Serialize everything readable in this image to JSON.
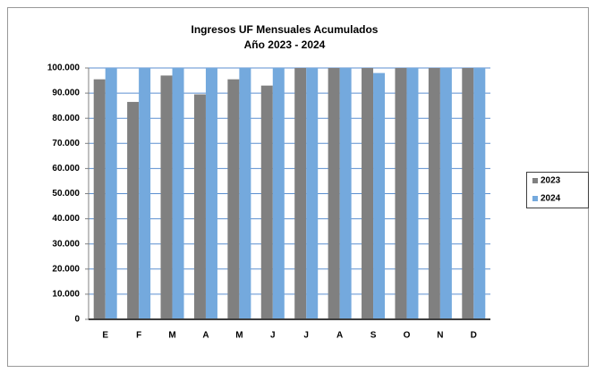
{
  "chart_data": {
    "type": "bar",
    "title": "Ingresos UF Mensuales Acumulados",
    "subtitle": "Año 2023 - 2024",
    "categories": [
      "E",
      "F",
      "M",
      "A",
      "M",
      "J",
      "J",
      "A",
      "S",
      "O",
      "N",
      "D"
    ],
    "series": [
      {
        "name": "2023",
        "color": "#808080",
        "values": [
          95500,
          86500,
          97000,
          89500,
          95500,
          93000,
          100000,
          100000,
          100000,
          100000,
          100000,
          100000
        ]
      },
      {
        "name": "2024",
        "color": "#74a9dd",
        "values": [
          100000,
          100000,
          100000,
          100000,
          100000,
          100000,
          100000,
          100000,
          98000,
          100000,
          100000,
          100000
        ]
      }
    ],
    "ylim": [
      0,
      100000
    ],
    "yticks": [
      0,
      {
        "value": 10000,
        "label": "10.000"
      },
      {
        "value": 20000,
        "label": "20.000"
      },
      {
        "value": 30000,
        "label": "30.000"
      },
      {
        "value": 40000,
        "label": "40.000"
      },
      {
        "value": 50000,
        "label": "50.000"
      },
      {
        "value": 60000,
        "label": "60.000"
      },
      {
        "value": 70000,
        "label": "70.000"
      },
      {
        "value": 80000,
        "label": "80.000"
      },
      {
        "value": 90000,
        "label": "90.000"
      },
      {
        "value": 100000,
        "label": "100.000"
      }
    ],
    "grid": true,
    "legend": "right"
  }
}
